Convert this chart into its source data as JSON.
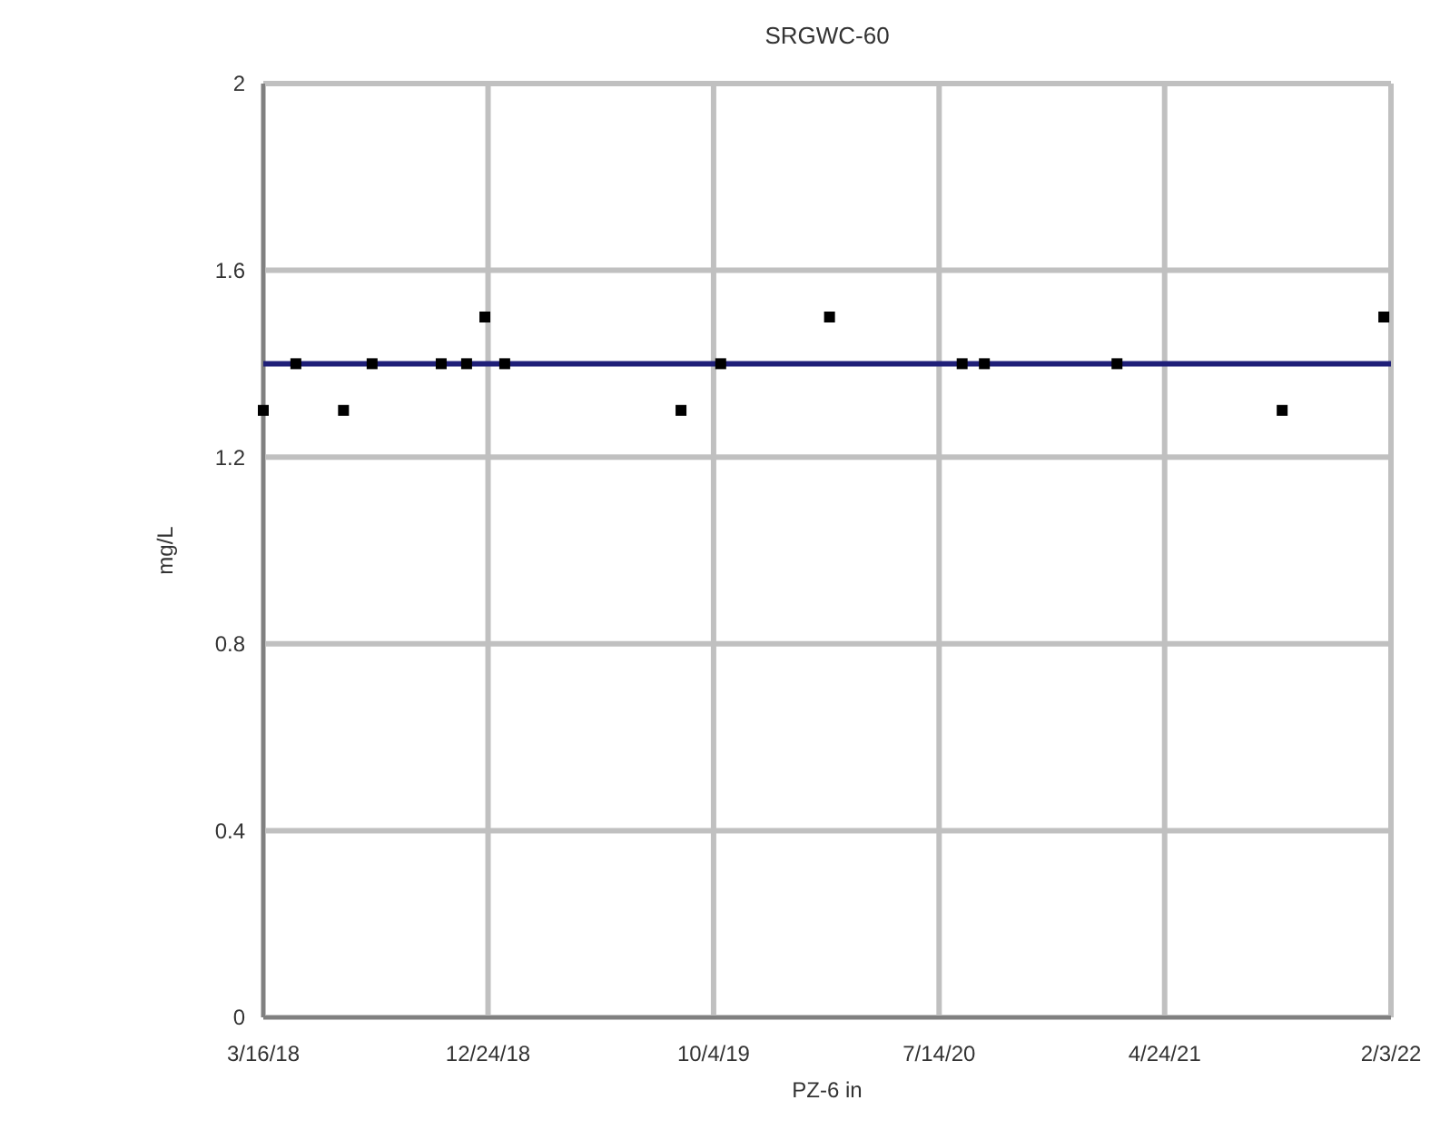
{
  "chart_data": {
    "type": "scatter",
    "title": "SRGWC-60",
    "xlabel": "PZ-6 in",
    "ylabel": "mg/L",
    "x": [
      "2018-03-16",
      "2018-04-26",
      "2018-06-25",
      "2018-07-31",
      "2018-10-26",
      "2018-11-27",
      "2018-12-20",
      "2019-01-14",
      "2019-08-24",
      "2019-10-13",
      "2020-02-27",
      "2020-08-12",
      "2020-09-09",
      "2021-02-23",
      "2021-09-19",
      "2022-01-25"
    ],
    "series": [
      {
        "color": "#000000",
        "values": [
          1.3,
          1.4,
          1.3,
          1.4,
          1.4,
          1.4,
          1.5,
          1.4,
          1.3,
          1.4,
          1.5,
          1.4,
          1.4,
          1.4,
          1.3,
          1.5
        ]
      }
    ],
    "marker": "square",
    "grid": true,
    "xlim": [
      "2018-03-16",
      "2022-02-03"
    ],
    "xticks": [
      {
        "value": "2018-03-16",
        "label": "3/16/18"
      },
      {
        "value": "2018-12-24",
        "label": "12/24/18"
      },
      {
        "value": "2019-10-04",
        "label": "10/4/19"
      },
      {
        "value": "2020-07-14",
        "label": "7/14/20"
      },
      {
        "value": "2021-04-24",
        "label": "4/24/21"
      },
      {
        "value": "2022-02-03",
        "label": "2/3/22"
      }
    ],
    "ylim": [
      0,
      2
    ],
    "yticks": [
      0,
      0.4,
      0.8,
      1.2,
      1.6,
      2
    ],
    "ref_lines": [
      {
        "axis": "y",
        "value": 1.4,
        "color": "#1f1f78"
      }
    ]
  }
}
